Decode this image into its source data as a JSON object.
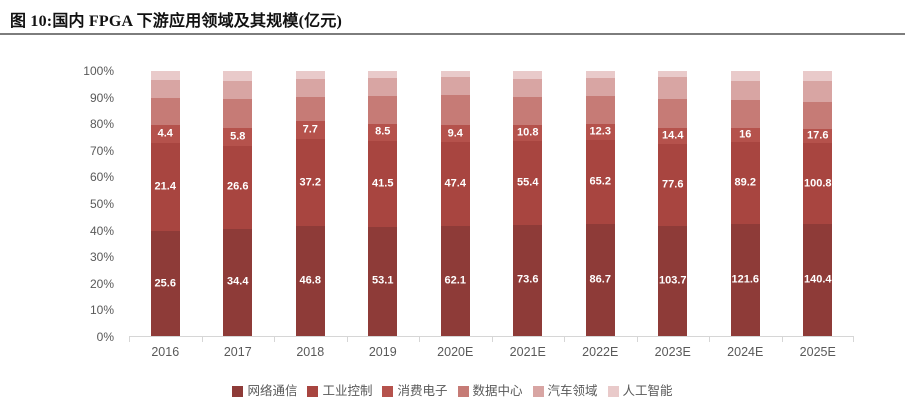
{
  "header": {
    "title": "图 10:国内 FPGA 下游应用领域及其规模(亿元)"
  },
  "chart_data": {
    "type": "bar",
    "variant": "100pct-stacked-column",
    "title": "图 10:国内 FPGA 下游应用领域及其规模(亿元)",
    "unit": "亿元",
    "categories": [
      "2016",
      "2017",
      "2018",
      "2019",
      "2020E",
      "2021E",
      "2022E",
      "2023E",
      "2024E",
      "2025E"
    ],
    "y_axis": {
      "ticks": [
        "0%",
        "10%",
        "20%",
        "30%",
        "40%",
        "50%",
        "60%",
        "70%",
        "80%",
        "90%",
        "100%"
      ],
      "range_pct": [
        0,
        100
      ],
      "gridlines": false
    },
    "series": [
      {
        "name": "网络通信",
        "key": "network-communication",
        "color": "#8e3b38",
        "data_labels_shown": true,
        "values": [
          25.6,
          34.4,
          46.8,
          53.1,
          62.1,
          73.6,
          86.7,
          103.7,
          121.6,
          140.4
        ]
      },
      {
        "name": "工业控制",
        "key": "industrial-control",
        "color": "#a84540",
        "data_labels_shown": true,
        "values": [
          21.4,
          26.6,
          37.2,
          41.5,
          47.4,
          55.4,
          65.2,
          77.6,
          89.2,
          100.8
        ]
      },
      {
        "name": "消费电子",
        "key": "consumer-electronics",
        "color": "#b5524c",
        "data_labels_shown": true,
        "values": [
          4.4,
          5.8,
          7.7,
          8.5,
          9.4,
          10.8,
          12.3,
          14.4,
          16,
          17.6
        ]
      },
      {
        "name": "数据中心",
        "key": "data-center",
        "color": "#c67b76",
        "data_labels_shown": false,
        "values_estimated_from_pixels": true,
        "values": [
          6.8,
          9.3,
          10.4,
          13.5,
          17.0,
          18.5,
          22.0,
          28.0,
          29.5,
          34.0
        ]
      },
      {
        "name": "汽车领域",
        "key": "automotive",
        "color": "#d8a5a3",
        "data_labels_shown": false,
        "values_estimated_from_pixels": true,
        "values": [
          4.3,
          5.7,
          7.6,
          8.7,
          10.0,
          12.2,
          13.8,
          20.0,
          21.0,
          26.0
        ]
      },
      {
        "name": "人工智能",
        "key": "artificial-intelligence",
        "color": "#e9caca",
        "data_labels_shown": false,
        "values_estimated_from_pixels": true,
        "values": [
          2.2,
          3.3,
          3.3,
          3.3,
          3.6,
          5.2,
          5.4,
          6.0,
          11.0,
          13.0
        ]
      }
    ],
    "legend": {
      "position": "bottom",
      "labels": [
        "网络通信",
        "工业控制",
        "消费电子",
        "数据中心",
        "汽车领域",
        "人工智能"
      ]
    },
    "style": {
      "bar_value_label_color": "#ffffff",
      "axis_text_color": "#595959",
      "axis_line_color": "#d6d6d6",
      "divider_color": "#7d7d7d",
      "background_color": "#ffffff"
    }
  }
}
